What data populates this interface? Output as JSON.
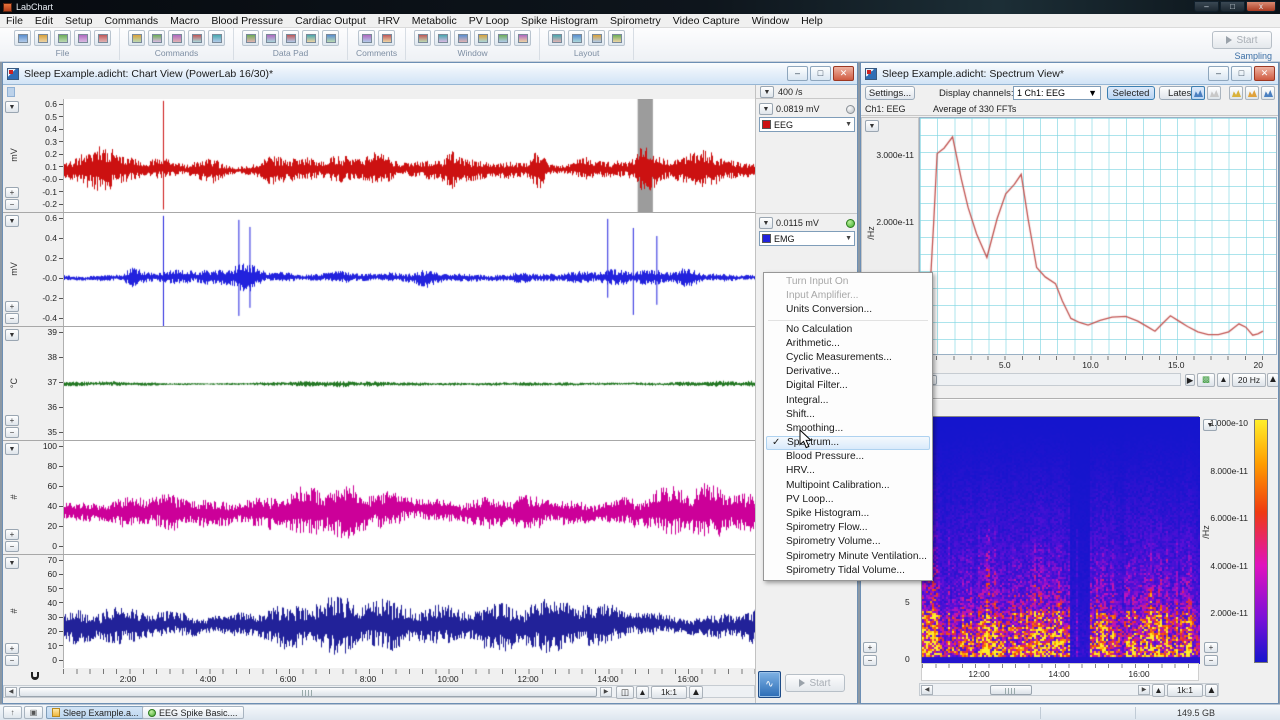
{
  "app": {
    "title": "LabChart"
  },
  "menu_bar": {
    "items": [
      "File",
      "Edit",
      "Setup",
      "Commands",
      "Macro",
      "Blood Pressure",
      "Cardiac Output",
      "HRV",
      "Metabolic",
      "PV Loop",
      "Spike Histogram",
      "Spirometry",
      "Video Capture",
      "Window",
      "Help"
    ]
  },
  "toolbar": {
    "groups": [
      {
        "label": "File",
        "icons": [
          "new-document-icon",
          "open-file-icon",
          "save-icon",
          "print-icon",
          "export-icon"
        ]
      },
      {
        "label": "Commands",
        "icons": [
          "find-icon",
          "find-special-icon",
          "select-marker-icon",
          "stop-icon",
          "macro-icon"
        ]
      },
      {
        "label": "Data Pad",
        "icons": [
          "datapad-icon",
          "datapad-add-icon",
          "datapad-view-icon",
          "datapad-options-icon",
          "datapad-plot-icon"
        ]
      },
      {
        "label": "Comments",
        "icons": [
          "add-comment-icon",
          "comments-window-icon"
        ]
      },
      {
        "label": "Window",
        "icons": [
          "window-tile-icon",
          "chart-view-icon",
          "zoom-view-icon",
          "notebook-icon",
          "picture-icon",
          "duplicate-window-icon"
        ]
      },
      {
        "label": "Layout",
        "icons": [
          "layout-grid-icon",
          "layout-columns-icon",
          "layout-add-icon",
          "layout-remove-icon"
        ]
      }
    ],
    "start_button": "Start",
    "sampling_label": "Sampling"
  },
  "chart_window": {
    "title": "Sleep Example.adicht: Chart View (PowerLab 16/30)*",
    "sample_rate": "400 /s",
    "right_panel": [
      {
        "range": "0.0819 mV",
        "channel_name": "EEG",
        "status": "inactive"
      },
      {
        "range": "0.0115 mV",
        "channel_name": "EMG",
        "status": "active"
      }
    ],
    "time_ticks": [
      "2:00",
      "4:00",
      "6:00",
      "8:00",
      "10:00",
      "12:00",
      "14:00",
      "16:00"
    ],
    "compression": "1k:1",
    "start_button": "Start"
  },
  "context_menu": {
    "items": [
      {
        "label": "Turn Input On",
        "disabled": true
      },
      {
        "label": "Input Amplifier...",
        "disabled": true
      },
      {
        "label": "Units Conversion..."
      },
      {
        "separator": true
      },
      {
        "label": "No Calculation"
      },
      {
        "label": "Arithmetic..."
      },
      {
        "label": "Cyclic Measurements..."
      },
      {
        "label": "Derivative..."
      },
      {
        "label": "Digital Filter..."
      },
      {
        "label": "Integral..."
      },
      {
        "label": "Shift..."
      },
      {
        "label": "Smoothing..."
      },
      {
        "label": "Spectrum...",
        "checked": true,
        "highlighted": true
      },
      {
        "label": "Blood Pressure..."
      },
      {
        "label": "HRV..."
      },
      {
        "label": "Multipoint Calibration..."
      },
      {
        "label": "PV Loop..."
      },
      {
        "label": "Spike Histogram..."
      },
      {
        "label": "Spirometry Flow..."
      },
      {
        "label": "Spirometry Volume..."
      },
      {
        "label": "Spirometry Minute Ventilation..."
      },
      {
        "label": "Spirometry Tidal Volume..."
      }
    ]
  },
  "spectrum_window": {
    "title": "Sleep Example.adicht: Spectrum View*",
    "toolbar": {
      "settings": "Settings...",
      "display_channels": "Display channels:",
      "channel_value": "1 Ch1: EEG",
      "selected": "Selected",
      "latest": "Latest",
      "icons": [
        "spectrum-view-icon",
        "copy-icon",
        "amplitude-view-icon",
        "sonogram-view-icon",
        "waterfall-view-icon"
      ]
    },
    "header": {
      "channel": "Ch1: EEG",
      "info": "Average of 330 FFTs"
    },
    "upper_plot": {
      "y_ticks": [
        "3.000e-11",
        "2.000e-11"
      ],
      "y_label": "/Hz",
      "x_ticks": [
        "5.0",
        "10.0",
        "15.0",
        "20"
      ],
      "span_button": "20 Hz"
    },
    "lower_plot": {
      "y_ticks": [
        "5",
        "0"
      ],
      "x_ticks": [
        "12:00",
        "14:00",
        "16:00"
      ],
      "colorbar_ticks": [
        "1.000e-10",
        "8.000e-11",
        "6.000e-11",
        "4.000e-11",
        "2.000e-11"
      ],
      "colorbar_label": "/Hz",
      "compression": "1k:1"
    }
  },
  "taskbar": {
    "tabs": [
      {
        "label": "Sleep Example.a...",
        "active": true
      },
      {
        "label": "EEG Spike Basic....",
        "active": false
      }
    ],
    "disk_free": "149.5 GB"
  },
  "chart_data": [
    {
      "id": "chart-view-channels",
      "type": "line",
      "x_axis": {
        "ticks": [
          "2:00",
          "4:00",
          "6:00",
          "8:00",
          "10:00",
          "12:00",
          "14:00",
          "16:00"
        ],
        "unit": "time of day",
        "compression": "1k:1"
      },
      "channels": [
        {
          "name": "EEG",
          "unit": "mV",
          "color": "#cc1111",
          "y_ticks": [
            "0.6",
            "0.5",
            "0.4",
            "0.3",
            "0.2",
            "0.1",
            "-0.0",
            "-0.1",
            "-0.2"
          ],
          "vmin": -0.29,
          "vmax": 0.615,
          "mean": 0.05,
          "noise_amp": 0.045,
          "seed": 11,
          "bursts": [
            {
              "x": 0.05,
              "w": 0.025,
              "a": 2.2
            },
            {
              "x": 0.21,
              "w": 0.02,
              "a": 1.4
            },
            {
              "x": 0.3,
              "w": 0.015,
              "a": 1.6
            },
            {
              "x": 0.45,
              "w": 0.02,
              "a": 1.1
            },
            {
              "x": 0.56,
              "w": 0.012,
              "a": 1.8
            },
            {
              "x": 0.685,
              "w": 0.01,
              "a": 2.4
            },
            {
              "x": 0.75,
              "w": 0.015,
              "a": 1.3
            },
            {
              "x": 0.84,
              "w": 0.012,
              "a": 2.0
            },
            {
              "x": 0.93,
              "w": 0.02,
              "a": 1.5
            }
          ],
          "spikes": [
            {
              "x": 0.143,
              "v1": -0.27,
              "v2": 0.6
            }
          ],
          "selection": {
            "x0": 0.829,
            "x1": 0.851
          }
        },
        {
          "name": "EMG",
          "unit": "mV",
          "color": "#2222dd",
          "y_ticks": [
            "0.6",
            "0.4",
            "0.2",
            "-0.0",
            "-0.2",
            "-0.4"
          ],
          "vmin": -0.43,
          "vmax": 0.688,
          "mean": 0.05,
          "noise_amp": 0.03,
          "seed": 22,
          "bursts": [
            {
              "x": 0.1,
              "w": 0.012,
              "a": 1.6
            },
            {
              "x": 0.26,
              "w": 0.02,
              "a": 2.6
            },
            {
              "x": 0.4,
              "w": 0.015,
              "a": 1.0
            },
            {
              "x": 0.52,
              "w": 0.015,
              "a": 1.3
            },
            {
              "x": 0.66,
              "w": 0.01,
              "a": 1.2
            },
            {
              "x": 0.9,
              "w": 0.015,
              "a": 1.1
            }
          ],
          "spikes": [
            {
              "x": 0.143,
              "v1": -0.45,
              "v2": 0.66
            },
            {
              "x": 0.252,
              "v1": -0.33,
              "v2": 0.62
            },
            {
              "x": 0.268,
              "v1": -0.25,
              "v2": 0.55
            },
            {
              "x": 0.785,
              "v1": -0.15,
              "v2": 0.63
            },
            {
              "x": 0.822,
              "v1": -0.32,
              "v2": 0.54
            },
            {
              "x": 0.856,
              "v1": -0.22,
              "v2": 0.46
            }
          ]
        },
        {
          "unit": "°C",
          "color": "#227722",
          "y_ticks": [
            "39",
            "38",
            "37",
            "36",
            "35"
          ],
          "vmin": 34.7,
          "vmax": 39.4,
          "mean": 37.03,
          "noise_amp": 0.05,
          "seed": 33
        },
        {
          "unit": "#",
          "color": "#cc0099",
          "y_ticks": [
            "100",
            "80",
            "60",
            "40",
            "20",
            "0"
          ],
          "vmin": -11,
          "vmax": 107,
          "mean": 33,
          "noise_amp": 11,
          "seed": 44
        },
        {
          "unit": "#",
          "color": "#222299",
          "y_ticks": [
            "70",
            "60",
            "50",
            "40",
            "30",
            "20",
            "10",
            "0"
          ],
          "vmin": -12.4,
          "vmax": 70.7,
          "mean": 19,
          "noise_amp": 8.5,
          "seed": 55
        }
      ]
    },
    {
      "id": "eeg-spectrum",
      "type": "line",
      "title": "Average of 330 FFTs",
      "ylabel": "/Hz",
      "xlabel_unit": "Hz",
      "xlim": [
        0,
        20
      ],
      "ylim_e11": [
        0,
        3.55
      ],
      "x_tick_vals": [
        5,
        10,
        15,
        20
      ],
      "y_tick_vals_e11": [
        3.0,
        2.0
      ],
      "grid": true,
      "series": [
        {
          "name": "Ch1: EEG",
          "color": "#c0504d",
          "points_x_hz_y_e11": [
            [
              0.2,
              0.05
            ],
            [
              0.5,
              0.6
            ],
            [
              0.8,
              2.0
            ],
            [
              1.0,
              3.02
            ],
            [
              1.4,
              3.1
            ],
            [
              1.9,
              3.27
            ],
            [
              2.4,
              2.65
            ],
            [
              2.8,
              2.22
            ],
            [
              3.3,
              1.82
            ],
            [
              3.9,
              1.47
            ],
            [
              4.5,
              2.05
            ],
            [
              5.0,
              2.42
            ],
            [
              5.5,
              2.56
            ],
            [
              5.9,
              2.71
            ],
            [
              6.3,
              2.05
            ],
            [
              6.8,
              1.32
            ],
            [
              7.3,
              1.18
            ],
            [
              7.9,
              1.08
            ],
            [
              8.3,
              0.82
            ],
            [
              8.8,
              0.56
            ],
            [
              9.3,
              0.5
            ],
            [
              9.8,
              0.46
            ],
            [
              10.5,
              0.53
            ],
            [
              11.2,
              0.58
            ],
            [
              12.0,
              0.59
            ],
            [
              12.7,
              0.52
            ],
            [
              13.3,
              0.43
            ],
            [
              13.7,
              0.37
            ],
            [
              14.2,
              0.5
            ],
            [
              14.6,
              0.6
            ],
            [
              15.1,
              0.52
            ],
            [
              15.6,
              0.44
            ],
            [
              16.2,
              0.36
            ],
            [
              16.8,
              0.32
            ],
            [
              17.4,
              0.32
            ],
            [
              18.0,
              0.36
            ],
            [
              18.6,
              0.48
            ],
            [
              19.0,
              0.43
            ],
            [
              19.4,
              0.31
            ],
            [
              19.7,
              0.33
            ],
            [
              20.0,
              0.37
            ]
          ]
        }
      ]
    },
    {
      "id": "eeg-sonogram",
      "type": "heatmap",
      "description": "EEG power sonogram, time 11:00-17:30 vs frequency (0 at bottom), power /Hz colormapped from blue (low) through magenta to yellow (high); quiet dark band near 14:45",
      "x_ticks": [
        "12:00",
        "14:00",
        "16:00"
      ],
      "y_ticks": [
        5,
        0
      ],
      "colorbar_ticks_e11": [
        10,
        8,
        6,
        4,
        2
      ],
      "colorbar_label": "/Hz",
      "seed": 77,
      "quiet_band_frac": [
        0.53,
        0.6
      ]
    }
  ]
}
